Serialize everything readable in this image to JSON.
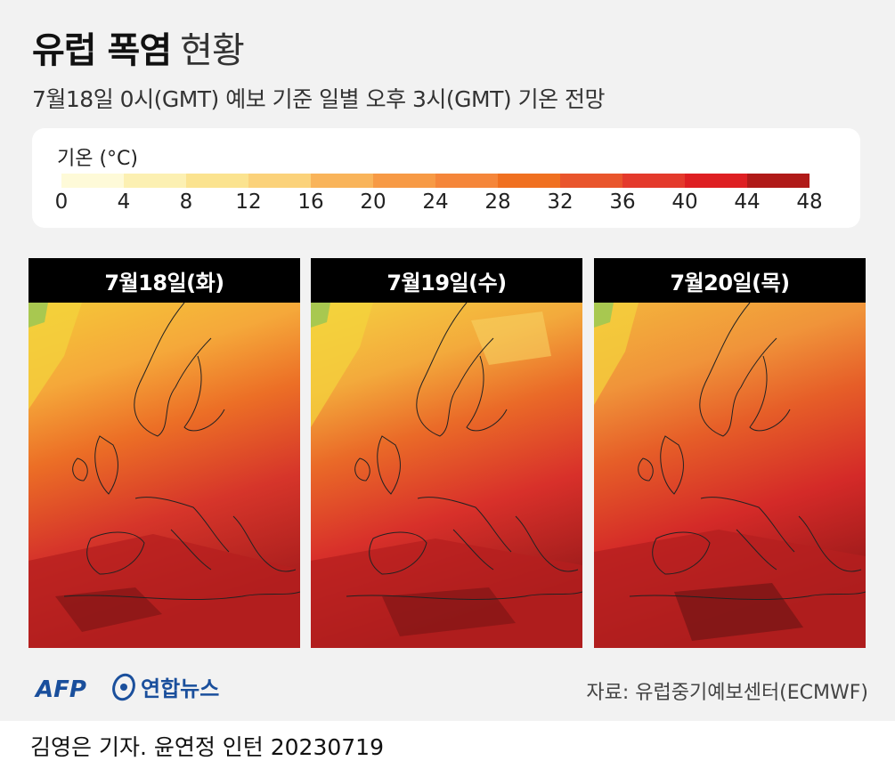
{
  "header": {
    "title_bold": "유럽 폭염",
    "title_light": "현황",
    "subtitle": "7월18일 0시(GMT) 예보 기준 일별 오후 3시(GMT) 기온 전망"
  },
  "legend": {
    "title": "기온 (°C)",
    "ticks": [
      "0",
      "4",
      "8",
      "12",
      "16",
      "20",
      "24",
      "28",
      "32",
      "36",
      "40",
      "44",
      "48"
    ],
    "colors": [
      "#fefad8",
      "#fcf0b2",
      "#fbe38f",
      "#fbd27a",
      "#f9b45a",
      "#f79a45",
      "#f5863a",
      "#f07020",
      "#e9552c",
      "#e43a2c",
      "#de1f22",
      "#b01a18",
      "#6e1515"
    ]
  },
  "maps": [
    {
      "label": "7월18일(화)"
    },
    {
      "label": "7월19일(수)"
    },
    {
      "label": "7월20일(목)"
    }
  ],
  "footer": {
    "logo_afp": "AFP",
    "logo_yonhap": "연합뉴스",
    "source": "자료: 유럽중기예보센터(ECMWF)",
    "credit": "김영은 기자. 윤연정 인턴  20230719"
  }
}
